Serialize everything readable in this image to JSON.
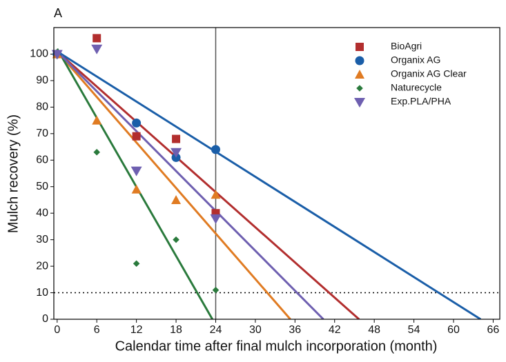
{
  "chart_data": {
    "type": "scatter",
    "panel_label": "A",
    "x_label": "Calendar time after final mulch incorporation (month)",
    "y_label": "Mulch recovery (%)",
    "xlim": [
      -0.5,
      67
    ],
    "ylim": [
      0,
      110
    ],
    "xticks": [
      0,
      6,
      12,
      18,
      24,
      30,
      36,
      42,
      48,
      54,
      60,
      66
    ],
    "yticks": [
      0,
      10,
      20,
      30,
      40,
      50,
      60,
      70,
      80,
      90,
      100
    ],
    "vline_x": 24,
    "hline_y": 10,
    "series": [
      {
        "name": "BioAgri",
        "color": "#b22e2e",
        "marker": "square",
        "x": [
          0,
          6,
          12,
          18,
          24
        ],
        "values": [
          100,
          106,
          69,
          68,
          40
        ],
        "fit_x": [
          0,
          45.7
        ],
        "fit_y": [
          101,
          0
        ]
      },
      {
        "name": "Organix AG",
        "color": "#1a5ea8",
        "marker": "circle",
        "x": [
          0,
          12,
          18,
          24
        ],
        "values": [
          100,
          74,
          61,
          64
        ],
        "fit_x": [
          0,
          64.1
        ],
        "fit_y": [
          101,
          0
        ]
      },
      {
        "name": "Organix AG Clear",
        "color": "#e07b22",
        "marker": "triangle",
        "x": [
          0,
          6,
          12,
          18,
          24
        ],
        "values": [
          100,
          75,
          49,
          45,
          47
        ],
        "fit_x": [
          0,
          35.3
        ],
        "fit_y": [
          101,
          0
        ]
      },
      {
        "name": "Naturecycle",
        "color": "#2a7a3c",
        "marker": "diamond",
        "x": [
          0,
          6,
          12,
          18,
          24
        ],
        "values": [
          100,
          63,
          21,
          30,
          11
        ],
        "fit_x": [
          0,
          23.5
        ],
        "fit_y": [
          102,
          0
        ]
      },
      {
        "name": "Exp.PLA/PHA",
        "color": "#6e5fb0",
        "marker": "triangle-down",
        "x": [
          0,
          6,
          12,
          18,
          24
        ],
        "values": [
          100,
          102,
          56,
          63,
          38
        ],
        "fit_x": [
          0,
          40.3
        ],
        "fit_y": [
          101,
          0
        ]
      }
    ]
  }
}
